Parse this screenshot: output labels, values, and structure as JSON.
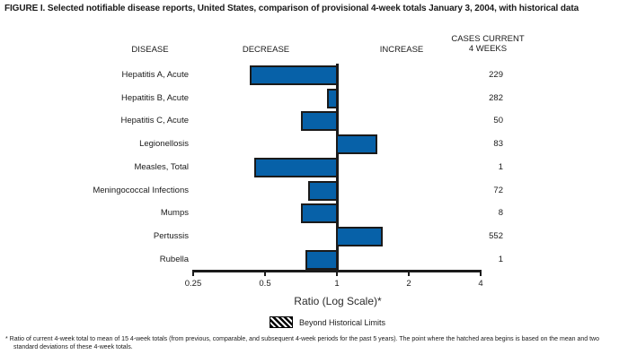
{
  "title": "FIGURE I. Selected notifiable disease reports, United States, comparison of provisional 4-week totals January 3, 2004, with historical data",
  "headers": {
    "disease": "DISEASE",
    "decrease": "DECREASE",
    "increase": "INCREASE",
    "cases_line1": "CASES CURRENT",
    "cases_line2": "4 WEEKS"
  },
  "chart_data": {
    "type": "bar",
    "orientation": "horizontal",
    "scale": "log2",
    "axis": {
      "label": "Ratio (Log Scale)*",
      "ticks": [
        0.25,
        0.5,
        1,
        2,
        4
      ],
      "baseline": 1,
      "range": [
        0.25,
        4
      ]
    },
    "categories": [
      "Hepatitis A, Acute",
      "Hepatitis B, Acute",
      "Hepatitis C, Acute",
      "Legionellosis",
      "Measles, Total",
      "Meningococcal Infections",
      "Mumps",
      "Pertussis",
      "Rubella"
    ],
    "ratios": [
      0.43,
      0.91,
      0.71,
      1.48,
      0.45,
      0.76,
      0.71,
      1.56,
      0.74
    ],
    "cases_current_4_weeks": [
      229,
      282,
      50,
      83,
      1,
      72,
      8,
      552,
      1
    ],
    "bar_color": "#0761a8",
    "bar_border_color": "#1a1a1a",
    "beyond_historical_limits": [
      false,
      false,
      false,
      false,
      false,
      false,
      false,
      false,
      false
    ],
    "legend": {
      "label": "Beyond Historical Limits",
      "swatch": "hatched-black-white"
    }
  },
  "footnote": "* Ratio of current 4-week total to mean of 15 4-week totals (from previous, comparable, and subsequent 4-week periods for the past 5 years). The point where the hatched area begins is based on the mean and two standard deviations of these 4-week totals."
}
